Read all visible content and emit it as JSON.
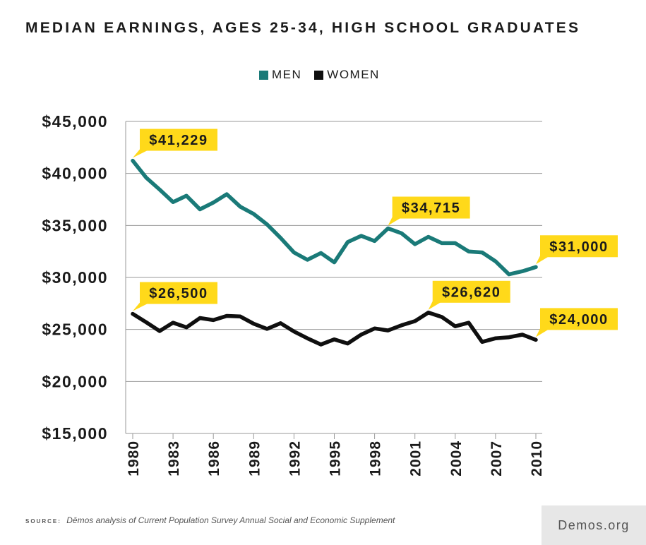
{
  "title": "MEDIAN EARNINGS, AGES 25-34, HIGH SCHOOL GRADUATES",
  "legend": [
    {
      "label": "MEN",
      "color": "#1a7a78"
    },
    {
      "label": "WOMEN",
      "color": "#0f0f0f"
    }
  ],
  "source": {
    "label": "SOURCE:",
    "text": "Dēmos analysis of Current Population Survey Annual Social and Economic Supplement"
  },
  "brand": "Demos.org",
  "chart_data": {
    "type": "line",
    "x": [
      1980,
      1981,
      1982,
      1983,
      1984,
      1985,
      1986,
      1987,
      1988,
      1989,
      1990,
      1991,
      1992,
      1993,
      1994,
      1995,
      1996,
      1997,
      1998,
      1999,
      2000,
      2001,
      2002,
      2003,
      2004,
      2005,
      2006,
      2007,
      2008,
      2009,
      2010
    ],
    "x_ticks": [
      "1980",
      "1983",
      "1986",
      "1989",
      "1992",
      "1995",
      "1998",
      "2001",
      "2004",
      "2007",
      "2010"
    ],
    "y_ticks": [
      "$15,000",
      "$20,000",
      "$25,000",
      "$30,000",
      "$35,000",
      "$40,000",
      "$45,000"
    ],
    "y_tick_values": [
      15000,
      20000,
      25000,
      30000,
      35000,
      40000,
      45000
    ],
    "ylim": [
      15000,
      45000
    ],
    "grid": true,
    "series": [
      {
        "name": "MEN",
        "color": "#1a7a78",
        "values": [
          41229,
          39600,
          38450,
          37250,
          37850,
          36550,
          37200,
          38000,
          36800,
          36100,
          35100,
          33800,
          32400,
          31700,
          32350,
          31450,
          33400,
          34000,
          33500,
          34715,
          34250,
          33200,
          33900,
          33300,
          33300,
          32500,
          32400,
          31550,
          30300,
          30600,
          31000
        ]
      },
      {
        "name": "WOMEN",
        "color": "#0f0f0f",
        "values": [
          26500,
          25700,
          24850,
          25650,
          25200,
          26100,
          25900,
          26300,
          26250,
          25550,
          25050,
          25600,
          24800,
          24150,
          23550,
          24050,
          23650,
          24500,
          25100,
          24900,
          25400,
          25800,
          26620,
          26200,
          25300,
          25650,
          23800,
          24150,
          24250,
          24500,
          24000
        ]
      }
    ],
    "callouts": [
      {
        "series": 0,
        "index": 0,
        "label": "$41,229",
        "dx": 10,
        "dy": -45,
        "tail": "left"
      },
      {
        "series": 0,
        "index": 19,
        "label": "$34,715",
        "dx": 6,
        "dy": -45,
        "tail": "left"
      },
      {
        "series": 0,
        "index": 30,
        "label": "$31,000",
        "dx": 6,
        "dy": -45,
        "tail": "left"
      },
      {
        "series": 1,
        "index": 0,
        "label": "$26,500",
        "dx": 10,
        "dy": -45,
        "tail": "left"
      },
      {
        "series": 1,
        "index": 22,
        "label": "$26,620",
        "dx": 6,
        "dy": -45,
        "tail": "left"
      },
      {
        "series": 1,
        "index": 30,
        "label": "$24,000",
        "dx": 6,
        "dy": -45,
        "tail": "left"
      }
    ]
  }
}
